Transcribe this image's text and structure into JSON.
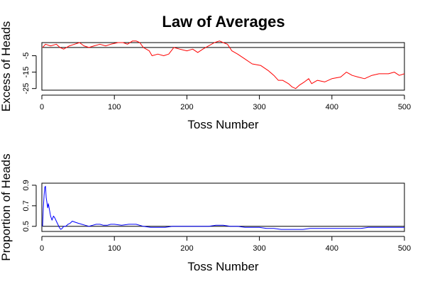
{
  "figure": {
    "title": "Law of Averages"
  },
  "chart_data": [
    {
      "type": "line",
      "xlabel": "Toss Number",
      "ylabel": "Excess of Heads",
      "xlim": [
        0,
        500
      ],
      "ylim": [
        -26,
        3
      ],
      "xticks": [
        0,
        100,
        200,
        300,
        400,
        500
      ],
      "yticks": [
        -5,
        -15,
        -25
      ],
      "reference_line": 0,
      "reference_color": "#000000",
      "series": [
        {
          "color": "#ff0000",
          "points": [
            [
              1,
              0
            ],
            [
              5,
              2
            ],
            [
              12,
              1
            ],
            [
              20,
              2
            ],
            [
              25,
              0
            ],
            [
              30,
              -1
            ],
            [
              38,
              1
            ],
            [
              45,
              2
            ],
            [
              52,
              3
            ],
            [
              58,
              1
            ],
            [
              65,
              0
            ],
            [
              72,
              1
            ],
            [
              80,
              2
            ],
            [
              88,
              1
            ],
            [
              95,
              2
            ],
            [
              105,
              3
            ],
            [
              112,
              3
            ],
            [
              118,
              2
            ],
            [
              125,
              4
            ],
            [
              130,
              4
            ],
            [
              135,
              3
            ],
            [
              140,
              0
            ],
            [
              148,
              -2
            ],
            [
              152,
              -5
            ],
            [
              160,
              -4
            ],
            [
              168,
              -5
            ],
            [
              175,
              -4
            ],
            [
              182,
              0
            ],
            [
              190,
              -1
            ],
            [
              200,
              -2
            ],
            [
              208,
              -1
            ],
            [
              215,
              -3
            ],
            [
              222,
              -1
            ],
            [
              230,
              1
            ],
            [
              238,
              3
            ],
            [
              245,
              4
            ],
            [
              250,
              3
            ],
            [
              256,
              2
            ],
            [
              262,
              -2
            ],
            [
              270,
              -4
            ],
            [
              280,
              -7
            ],
            [
              290,
              -10
            ],
            [
              302,
              -11
            ],
            [
              312,
              -14
            ],
            [
              320,
              -17
            ],
            [
              326,
              -20
            ],
            [
              332,
              -20
            ],
            [
              340,
              -22
            ],
            [
              345,
              -24
            ],
            [
              350,
              -25
            ],
            [
              355,
              -23
            ],
            [
              362,
              -21
            ],
            [
              368,
              -19
            ],
            [
              372,
              -22
            ],
            [
              380,
              -20
            ],
            [
              390,
              -21
            ],
            [
              400,
              -19
            ],
            [
              412,
              -18
            ],
            [
              420,
              -15
            ],
            [
              428,
              -17
            ],
            [
              436,
              -18
            ],
            [
              445,
              -19
            ],
            [
              455,
              -17
            ],
            [
              465,
              -16
            ],
            [
              478,
              -16
            ],
            [
              486,
              -15
            ],
            [
              493,
              -17
            ],
            [
              500,
              -16
            ]
          ]
        }
      ]
    },
    {
      "type": "line",
      "xlabel": "Toss Number",
      "ylabel": "Proportion of Heads",
      "xlim": [
        0,
        500
      ],
      "ylim": [
        0.45,
        0.92
      ],
      "xticks": [
        0,
        100,
        200,
        300,
        400,
        500
      ],
      "yticks": [
        0.5,
        0.7,
        0.9
      ],
      "reference_line": 0.5,
      "reference_color": "#000000",
      "series": [
        {
          "color": "#0000ff",
          "points": [
            [
              1,
              0.5
            ],
            [
              2,
              0.67
            ],
            [
              3,
              0.8
            ],
            [
              4,
              0.88
            ],
            [
              5,
              0.89
            ],
            [
              6,
              0.78
            ],
            [
              7,
              0.73
            ],
            [
              8,
              0.68
            ],
            [
              9,
              0.72
            ],
            [
              10,
              0.68
            ],
            [
              12,
              0.6
            ],
            [
              14,
              0.56
            ],
            [
              16,
              0.6
            ],
            [
              18,
              0.58
            ],
            [
              20,
              0.55
            ],
            [
              22,
              0.52
            ],
            [
              24,
              0.49
            ],
            [
              26,
              0.47
            ],
            [
              28,
              0.48
            ],
            [
              30,
              0.5
            ],
            [
              33,
              0.5
            ],
            [
              36,
              0.52
            ],
            [
              39,
              0.53
            ],
            [
              42,
              0.55
            ],
            [
              46,
              0.54
            ],
            [
              50,
              0.53
            ],
            [
              55,
              0.52
            ],
            [
              60,
              0.51
            ],
            [
              65,
              0.5
            ],
            [
              70,
              0.51
            ],
            [
              75,
              0.52
            ],
            [
              80,
              0.52
            ],
            [
              85,
              0.51
            ],
            [
              90,
              0.51
            ],
            [
              95,
              0.52
            ],
            [
              100,
              0.52
            ],
            [
              110,
              0.51
            ],
            [
              120,
              0.52
            ],
            [
              130,
              0.52
            ],
            [
              140,
              0.5
            ],
            [
              150,
              0.49
            ],
            [
              160,
              0.49
            ],
            [
              170,
              0.49
            ],
            [
              180,
              0.5
            ],
            [
              190,
              0.5
            ],
            [
              200,
              0.5
            ],
            [
              210,
              0.5
            ],
            [
              220,
              0.5
            ],
            [
              230,
              0.5
            ],
            [
              240,
              0.51
            ],
            [
              250,
              0.51
            ],
            [
              260,
              0.5
            ],
            [
              270,
              0.5
            ],
            [
              280,
              0.49
            ],
            [
              290,
              0.49
            ],
            [
              300,
              0.49
            ],
            [
              310,
              0.48
            ],
            [
              320,
              0.48
            ],
            [
              330,
              0.47
            ],
            [
              340,
              0.47
            ],
            [
              350,
              0.47
            ],
            [
              360,
              0.47
            ],
            [
              370,
              0.48
            ],
            [
              380,
              0.48
            ],
            [
              390,
              0.48
            ],
            [
              400,
              0.48
            ],
            [
              410,
              0.48
            ],
            [
              420,
              0.48
            ],
            [
              430,
              0.48
            ],
            [
              440,
              0.48
            ],
            [
              450,
              0.49
            ],
            [
              460,
              0.49
            ],
            [
              470,
              0.49
            ],
            [
              480,
              0.49
            ],
            [
              490,
              0.49
            ],
            [
              500,
              0.49
            ]
          ]
        }
      ]
    }
  ]
}
